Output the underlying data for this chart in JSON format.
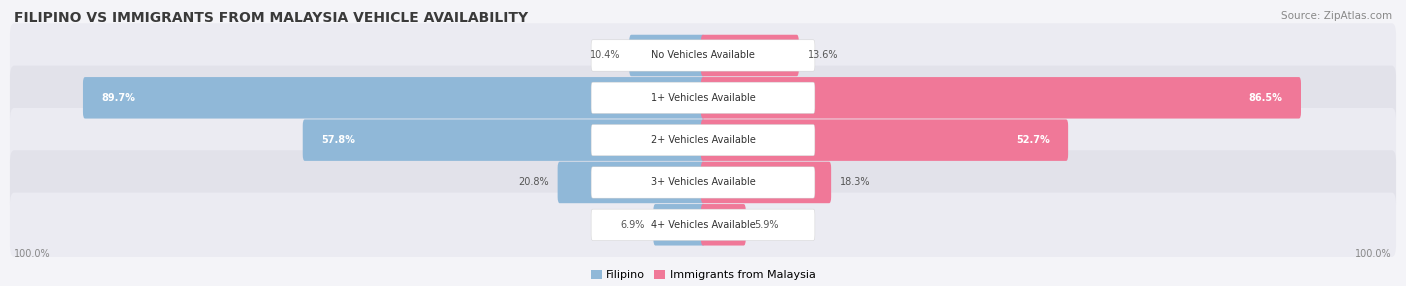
{
  "title": "FILIPINO VS IMMIGRANTS FROM MALAYSIA VEHICLE AVAILABILITY",
  "source": "Source: ZipAtlas.com",
  "categories": [
    "No Vehicles Available",
    "1+ Vehicles Available",
    "2+ Vehicles Available",
    "3+ Vehicles Available",
    "4+ Vehicles Available"
  ],
  "filipino_values": [
    10.4,
    89.7,
    57.8,
    20.8,
    6.9
  ],
  "malaysia_values": [
    13.6,
    86.5,
    52.7,
    18.3,
    5.9
  ],
  "filipino_color": "#90b8d8",
  "malaysia_color": "#f07898",
  "fig_bg": "#f4f4f8",
  "row_bg_light": "#ebebf2",
  "row_bg_dark": "#e2e2ea",
  "title_color": "#3a3a3a",
  "source_color": "#888888",
  "label_dark": "#444444",
  "label_light": "#ffffff",
  "figsize": [
    14.06,
    2.86
  ],
  "dpi": 100
}
